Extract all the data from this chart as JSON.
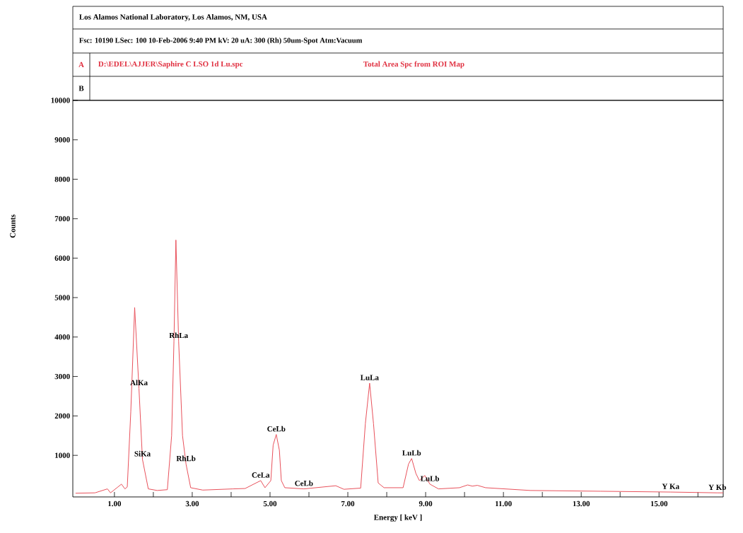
{
  "chart_data": {
    "type": "line",
    "title": "Los Alamos National Laboratory, Los Alamos, NM, USA",
    "subtitle": "Fsc: 10190   LSec: 100   10-Feb-2006   9:40 PM      kV: 20   uA: 300     (Rh)   50um-Spot    Atm:Vacuum",
    "xlabel": "Energy [ keV ]",
    "ylabel": "Counts",
    "x": [
      0,
      0.5,
      0.82,
      0.9,
      1.18,
      1.27,
      1.33,
      1.42,
      1.52,
      1.63,
      1.72,
      1.87,
      2.1,
      2.36,
      2.47,
      2.53,
      2.58,
      2.65,
      2.75,
      2.84,
      2.96,
      3.27,
      4.05,
      4.36,
      4.76,
      4.87,
      5.02,
      5.08,
      5.16,
      5.24,
      5.29,
      5.38,
      5.87,
      6.69,
      6.9,
      7.33,
      7.45,
      7.56,
      7.66,
      7.78,
      7.93,
      8.42,
      8.56,
      8.64,
      8.75,
      8.84,
      8.98,
      9.11,
      9.33,
      9.87,
      10.08,
      10.2,
      10.33,
      10.54,
      11.69,
      13.5,
      15.3,
      16.5,
      16.65
    ],
    "series": [
      {
        "color": "#e8505a",
        "values": [
          40,
          50,
          150,
          50,
          270,
          150,
          200,
          2100,
          4750,
          2700,
          900,
          150,
          110,
          130,
          1500,
          3900,
          6460,
          3900,
          1500,
          780,
          180,
          120,
          150,
          160,
          360,
          180,
          360,
          1260,
          1530,
          1130,
          360,
          180,
          150,
          230,
          140,
          170,
          1800,
          2830,
          1800,
          300,
          180,
          180,
          780,
          920,
          540,
          360,
          490,
          270,
          150,
          180,
          250,
          220,
          240,
          180,
          110,
          90,
          70,
          50,
          50
        ]
      }
    ],
    "marker": "none",
    "xlim": [
      -0.07,
      16.65
    ],
    "ylim": [
      -54,
      10000
    ],
    "xticks": [
      {
        "value": 1,
        "label": "1.00"
      },
      {
        "value": 2,
        "label": null
      },
      {
        "value": 3,
        "label": "3.00"
      },
      {
        "value": 4,
        "label": null
      },
      {
        "value": 5,
        "label": "5.00"
      },
      {
        "value": 6,
        "label": null
      },
      {
        "value": 7,
        "label": "7.00"
      },
      {
        "value": 8,
        "label": null
      },
      {
        "value": 9,
        "label": "9.00"
      },
      {
        "value": 10,
        "label": null
      },
      {
        "value": 11,
        "label": "11.00"
      },
      {
        "value": 12,
        "label": null
      },
      {
        "value": 13,
        "label": "13.00"
      },
      {
        "value": 14,
        "label": null
      },
      {
        "value": 15,
        "label": "15.00"
      },
      {
        "value": 16,
        "label": null
      }
    ],
    "yticks": [
      1000,
      2000,
      3000,
      4000,
      5000,
      6000,
      7000,
      8000,
      9000,
      10000
    ],
    "annotations": [
      "A",
      "D:\\EDEL\\AJJER\\Saphire C LSO 1d Lu.spc",
      "Total Area Spc from ROI Map",
      "B",
      {
        "text": "AlKa",
        "x": 1.63,
        "y": 2700
      },
      {
        "text": "RhLa",
        "x": 2.65,
        "y": 3900
      },
      {
        "text": "SiKa",
        "x": 1.72,
        "y": 900
      },
      {
        "text": "RhLb",
        "x": 2.84,
        "y": 780
      },
      {
        "text": "CeLb",
        "x": 5.16,
        "y": 1530
      },
      {
        "text": "CeLa",
        "x": 4.76,
        "y": 360
      },
      {
        "text": "CeLb",
        "x": 5.87,
        "y": 150
      },
      {
        "text": "LuLa",
        "x": 7.56,
        "y": 2830
      },
      {
        "text": "LuLb",
        "x": 8.64,
        "y": 920
      },
      {
        "text": "LuLb",
        "x": 9.11,
        "y": 270
      },
      {
        "text": "Y Ka",
        "x": 15.3,
        "y": 70
      },
      {
        "text": "Y Kb",
        "x": 16.5,
        "y": 50
      }
    ]
  }
}
